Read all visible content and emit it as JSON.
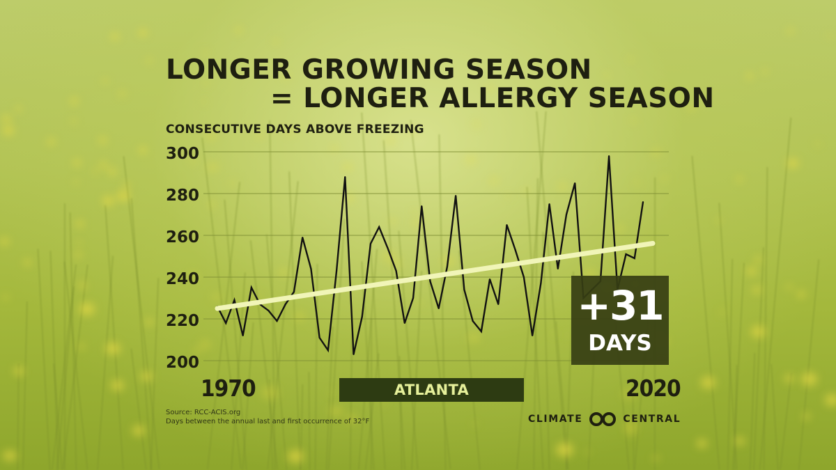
{
  "title_line1": "LONGER GROWING SEASON",
  "title_line2": "= LONGER ALLERGY SEASON",
  "subtitle": "CONSECUTIVE DAYS ABOVE FREEZING",
  "x_start_label": "1970",
  "x_end_label": "2020",
  "city": "ATLANTA",
  "callout": {
    "value": "+31",
    "unit": "DAYS"
  },
  "source_line1": "Source: RCC-ACIS.org",
  "source_line2": "Days between the annual last and first occurrence of 32°F",
  "brand": {
    "left": "CLIMATE",
    "right": "CENTRAL"
  },
  "colors": {
    "text": "#1e1f10",
    "line": "#111111",
    "trend": "#f1f5b8",
    "grid": "#7f8f35",
    "callout_bg": "#363e14",
    "city_bar": "#2d3b12"
  },
  "chart_data": {
    "type": "line",
    "ylim": [
      200,
      300
    ],
    "yticks": [
      200,
      220,
      240,
      260,
      280,
      300
    ],
    "xlim": [
      1970,
      2020
    ],
    "grid": true,
    "series": [
      {
        "x": [
          1970,
          1971,
          1972,
          1973,
          1974,
          1975,
          1976,
          1977,
          1978,
          1979,
          1980,
          1981,
          1982,
          1983,
          1984,
          1985,
          1986,
          1987,
          1988,
          1989,
          1990,
          1991,
          1992,
          1993,
          1994,
          1995,
          1996,
          1997,
          1998,
          1999,
          2000,
          2001,
          2002,
          2003,
          2004,
          2005,
          2006,
          2007,
          2008,
          2009,
          2010,
          2011,
          2012,
          2013,
          2014,
          2015,
          2016,
          2017,
          2018,
          2019,
          2020
        ],
        "values": [
          226,
          218,
          229,
          212,
          235,
          227,
          224,
          219,
          227,
          233,
          259,
          244,
          211,
          205,
          243,
          288,
          203,
          221,
          256,
          264,
          254,
          243,
          218,
          230,
          274,
          238,
          225,
          245,
          279,
          234,
          219,
          214,
          239,
          227,
          265,
          253,
          240,
          212,
          237,
          275,
          244,
          270,
          285,
          230,
          234,
          238,
          298,
          234,
          251,
          249,
          276
        ]
      }
    ],
    "trend": {
      "x": [
        1970,
        2020
      ],
      "values": [
        225,
        256
      ]
    }
  }
}
